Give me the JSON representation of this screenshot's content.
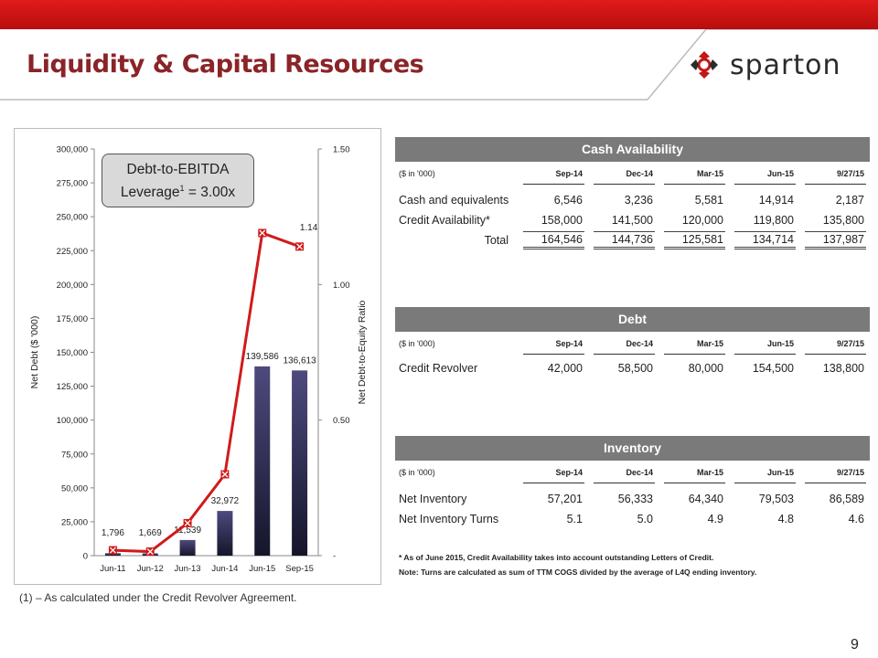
{
  "title": "Liquidity & Capital Resources",
  "logo_text": "sparton",
  "page_number": "9",
  "colors": {
    "accent_red": "#d11a1a",
    "title": "#8a2428",
    "panel_header": "#7a7a7a",
    "bar": "#4e4a7e"
  },
  "chart_callout": {
    "line1": "Debt-to-EBITDA",
    "line2a": "Leverage",
    "sup": "1",
    "line2b": " = 3.00x"
  },
  "footnote": "(1) – As calculated under the Credit Revolver Agreement.",
  "chart_data": {
    "type": "bar+line",
    "categories": [
      "Jun-11",
      "Jun-12",
      "Jun-13",
      "Jun-14",
      "Jun-15",
      "Sep-15"
    ],
    "series": [
      {
        "name": "Net Debt",
        "type": "bar",
        "axis": "left",
        "values": [
          1796,
          1669,
          11539,
          32972,
          139586,
          136613
        ],
        "labels": [
          "1,796",
          "1,669",
          "11,539",
          "32,972",
          "139,586",
          "136,613"
        ]
      },
      {
        "name": "Net Debt-to-Equity Ratio",
        "type": "line",
        "axis": "right",
        "values": [
          0.02,
          0.015,
          0.12,
          0.3,
          1.19,
          1.14
        ],
        "labels": [
          "",
          "",
          "",
          "",
          "",
          "1.14"
        ]
      }
    ],
    "ylabel": "Net Debt ($ '000)",
    "y2label": "Net Debt-to-Equity Ratio",
    "ylim": [
      0,
      300000
    ],
    "y2lim": [
      0,
      1.5
    ],
    "yticks": [
      "0",
      "25,000",
      "50,000",
      "75,000",
      "100,000",
      "125,000",
      "150,000",
      "175,000",
      "200,000",
      "225,000",
      "250,000",
      "275,000",
      "300,000"
    ],
    "y2ticks": [
      "-",
      "0.50",
      "1.00",
      "1.50"
    ]
  },
  "tables": {
    "cash": {
      "title": "Cash Availability",
      "unit": "($ in '000)",
      "columns": [
        "Sep-14",
        "Dec-14",
        "Mar-15",
        "Jun-15",
        "9/27/15"
      ],
      "rows": [
        {
          "label": "Cash and equivalents",
          "values": [
            "6,546",
            "3,236",
            "5,581",
            "14,914",
            "2,187"
          ]
        },
        {
          "label": "Credit Availability*",
          "values": [
            "158,000",
            "141,500",
            "120,000",
            "119,800",
            "135,800"
          ]
        }
      ],
      "total": {
        "label": "Total",
        "values": [
          "164,546",
          "144,736",
          "125,581",
          "134,714",
          "137,987"
        ]
      }
    },
    "debt": {
      "title": "Debt",
      "unit": "($ in '000)",
      "columns": [
        "Sep-14",
        "Dec-14",
        "Mar-15",
        "Jun-15",
        "9/27/15"
      ],
      "rows": [
        {
          "label": "Credit Revolver",
          "values": [
            "42,000",
            "58,500",
            "80,000",
            "154,500",
            "138,800"
          ]
        }
      ]
    },
    "inventory": {
      "title": "Inventory",
      "unit": "($ in '000)",
      "columns": [
        "Sep-14",
        "Dec-14",
        "Mar-15",
        "Jun-15",
        "9/27/15"
      ],
      "rows": [
        {
          "label": "Net Inventory",
          "values": [
            "57,201",
            "56,333",
            "64,340",
            "79,503",
            "86,589"
          ]
        },
        {
          "label": "Net Inventory Turns",
          "values": [
            "5.1",
            "5.0",
            "4.9",
            "4.8",
            "4.6"
          ]
        }
      ]
    }
  },
  "notes": [
    "* As of June 2015, Credit Availability takes into account outstanding Letters of Credit.",
    "Note: Turns are calculated as sum of TTM COGS divided by the average of L4Q ending inventory."
  ]
}
